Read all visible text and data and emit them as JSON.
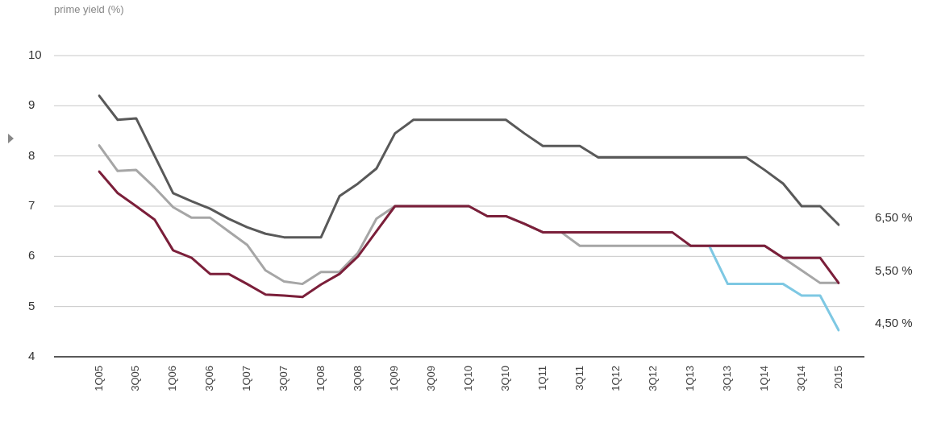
{
  "chart_data": {
    "type": "line",
    "ylabel": "prime yield (%)",
    "categories": [
      "1Q05",
      null,
      "3Q05",
      null,
      "1Q06",
      null,
      "3Q06",
      null,
      "1Q07",
      null,
      "3Q07",
      null,
      "1Q08",
      null,
      "3Q08",
      null,
      "1Q09",
      null,
      "3Q09",
      null,
      "1Q10",
      null,
      "3Q10",
      null,
      "1Q11",
      null,
      "3Q11",
      null,
      "1Q12",
      null,
      "3Q12",
      null,
      "1Q13",
      null,
      "3Q13",
      null,
      "1Q14",
      null,
      "3Q14",
      null,
      "2015"
    ],
    "series": [
      {
        "color": "#7b1f3a",
        "values": [
          7.69,
          7.26,
          7.0,
          6.73,
          6.12,
          5.97,
          5.65,
          5.65,
          5.45,
          5.24,
          5.22,
          5.19,
          5.44,
          5.65,
          6.0,
          6.5,
          7.0,
          7.0,
          7.0,
          7.0,
          7.0,
          6.8,
          6.8,
          6.65,
          6.48,
          6.48,
          6.48,
          6.48,
          6.48,
          6.48,
          6.48,
          6.48,
          6.21,
          6.21,
          6.21,
          6.21,
          6.21,
          5.97,
          5.97,
          5.97,
          5.47
        ]
      },
      {
        "color": "#7ec8e3",
        "values": [
          null,
          null,
          null,
          null,
          null,
          null,
          null,
          null,
          null,
          null,
          null,
          null,
          null,
          null,
          null,
          null,
          null,
          null,
          null,
          null,
          null,
          null,
          null,
          null,
          null,
          null,
          null,
          null,
          null,
          null,
          null,
          null,
          null,
          6.21,
          5.45,
          5.45,
          5.45,
          5.45,
          5.22,
          5.22,
          4.53
        ]
      },
      {
        "color": "#a6a6a6",
        "values": [
          8.21,
          7.7,
          7.72,
          7.37,
          6.98,
          6.77,
          6.77,
          6.5,
          6.23,
          5.72,
          5.5,
          5.45,
          5.69,
          5.69,
          6.07,
          6.75,
          7.0,
          7.0,
          7.0,
          7.0,
          7.0,
          6.8,
          6.8,
          6.65,
          6.48,
          6.48,
          6.21,
          6.21,
          6.21,
          6.21,
          6.21,
          6.21,
          6.21,
          6.21,
          6.21,
          6.21,
          6.21,
          5.97,
          5.72,
          5.47,
          5.47
        ]
      },
      {
        "color": "#595959",
        "values": [
          9.2,
          8.72,
          8.75,
          8.0,
          7.26,
          7.1,
          6.95,
          6.75,
          6.58,
          6.45,
          6.38,
          6.38,
          6.38,
          7.2,
          7.45,
          7.75,
          8.45,
          8.72,
          8.72,
          8.72,
          8.72,
          8.72,
          8.72,
          8.45,
          8.2,
          8.2,
          8.2,
          7.97,
          7.97,
          7.97,
          7.97,
          7.97,
          7.97,
          7.97,
          7.97,
          7.97,
          7.72,
          7.45,
          7.0,
          7.0,
          6.63
        ]
      }
    ],
    "ylim": [
      4,
      10
    ],
    "yticks": [
      4,
      5,
      6,
      7,
      8,
      9,
      10
    ],
    "grid": "y",
    "legend": false,
    "marker": "none",
    "line_style": "solid",
    "annotations": [
      "6,50 %",
      "5,50 %",
      "4,50 %"
    ]
  }
}
